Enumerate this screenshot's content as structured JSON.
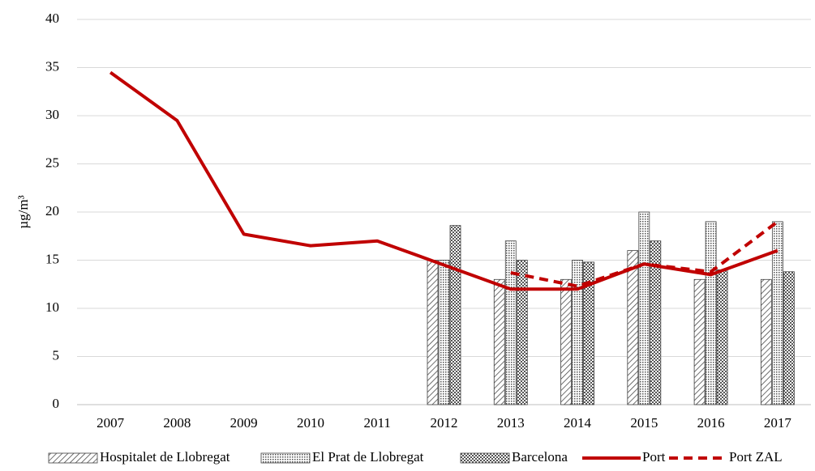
{
  "chart_data": {
    "type": "bar+line",
    "ylabel": "µg/m³",
    "categories": [
      "2007",
      "2008",
      "2009",
      "2010",
      "2011",
      "2012",
      "2013",
      "2014",
      "2015",
      "2016",
      "2017"
    ],
    "ylim": [
      0,
      40
    ],
    "yticks": [
      0,
      5,
      10,
      15,
      20,
      25,
      30,
      35,
      40
    ],
    "grid": true,
    "legend": "bottom",
    "series": [
      {
        "name": "Hospitalet de Llobregat",
        "type": "bar",
        "color": "#404040",
        "pattern": "diagonal",
        "values": [
          null,
          null,
          null,
          null,
          null,
          15,
          13,
          13,
          16,
          13,
          13
        ]
      },
      {
        "name": "El Prat de Llobregat",
        "type": "bar",
        "color": "#404040",
        "pattern": "dots",
        "values": [
          null,
          null,
          null,
          null,
          null,
          15,
          17,
          15,
          20,
          19,
          19
        ]
      },
      {
        "name": "Barcelona",
        "type": "bar",
        "color": "#404040",
        "pattern": "checker",
        "values": [
          null,
          null,
          null,
          null,
          null,
          18.6,
          15,
          14.8,
          17,
          14,
          13.8
        ]
      },
      {
        "name": "Port",
        "type": "line",
        "color": "#c00000",
        "linestyle": "solid",
        "values": [
          34.5,
          29.5,
          17.7,
          16.5,
          17,
          14.5,
          12,
          12,
          14.6,
          13.5,
          16
        ]
      },
      {
        "name": "Port ZAL",
        "type": "line",
        "color": "#c00000",
        "linestyle": "dashed",
        "values": [
          null,
          null,
          null,
          null,
          null,
          null,
          13.7,
          12.3,
          14.6,
          13.8,
          19
        ]
      }
    ]
  }
}
